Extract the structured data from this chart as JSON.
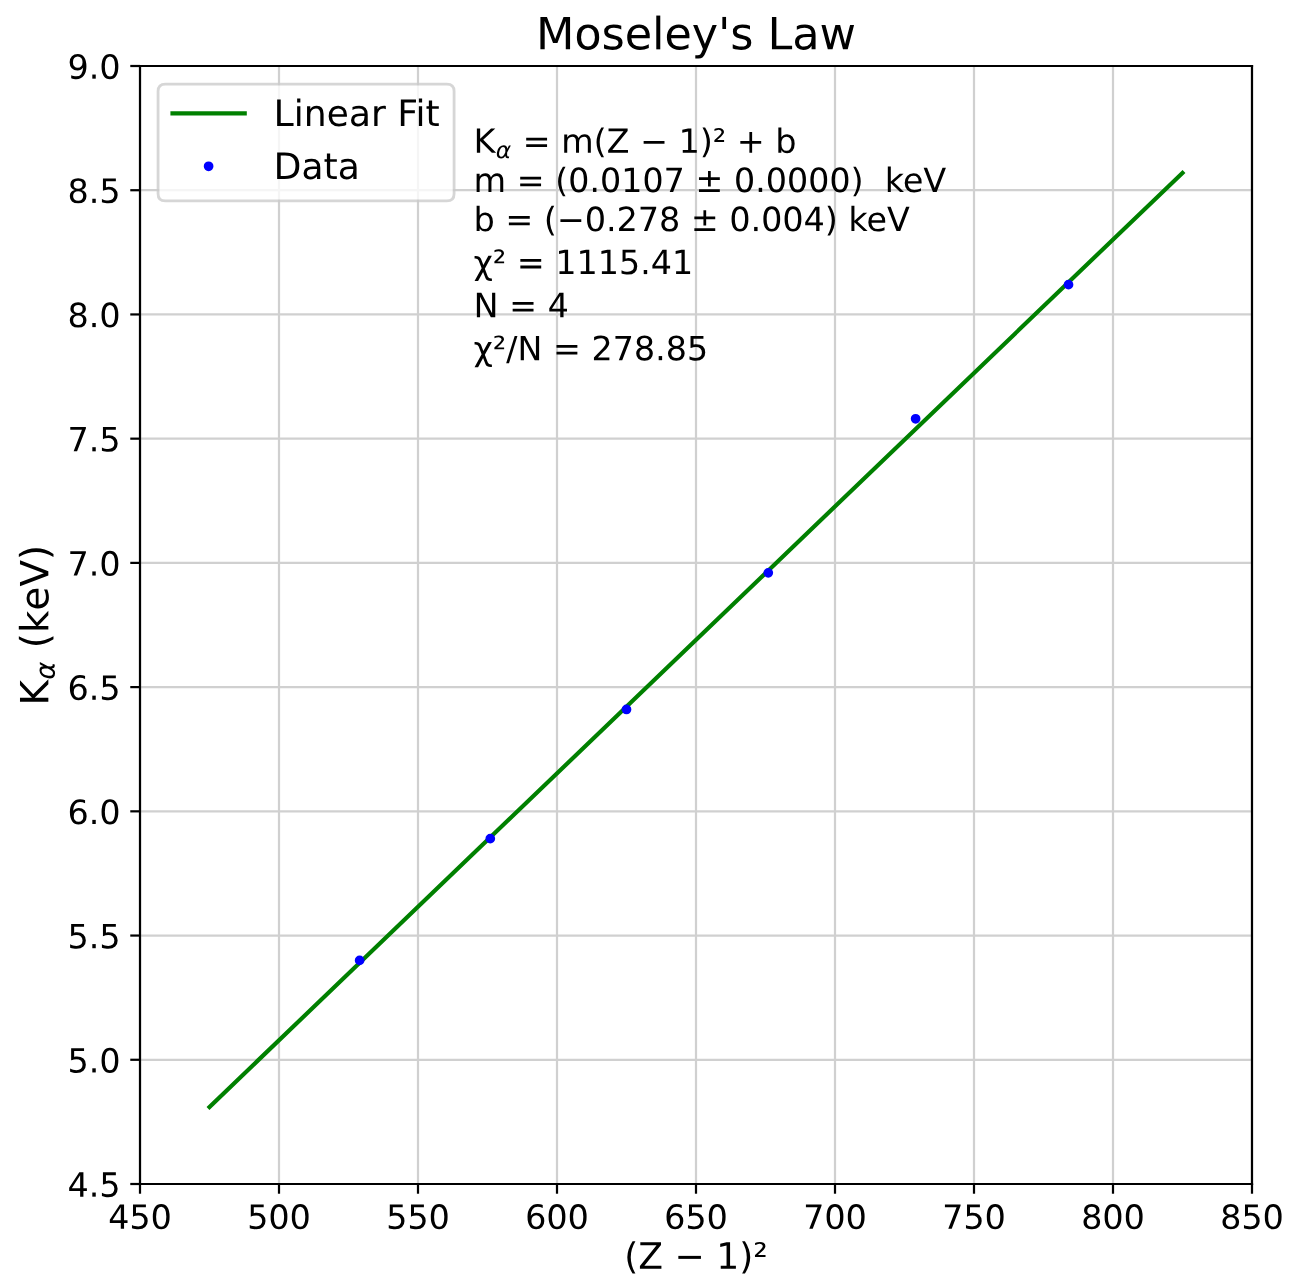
{
  "chart_data": {
    "type": "scatter",
    "title": "Moseley's Law",
    "xlabel": "(Z − 1)²",
    "ylabel": "K$_{α}$ (keV)",
    "series": [
      {
        "name": "Linear Fit",
        "type": "line",
        "color": "#008000",
        "x": [
          475,
          825
        ],
        "values": [
          4.81,
          8.57
        ]
      },
      {
        "name": "Data",
        "marker": "circle",
        "color": "#0000ff",
        "x": [
          529,
          576,
          625,
          676,
          729,
          784
        ],
        "values": [
          5.4,
          5.89,
          6.41,
          6.96,
          7.58,
          8.12
        ]
      }
    ],
    "annotations": [
      "K$_{α}$ = m(Z − 1)² + b",
      "m = (0.0107 ± 0.0000)  keV",
      "b = (−0.278 ± 0.004) keV",
      "χ² = 1115.41",
      "N = 4",
      "χ²/N = 278.85"
    ],
    "xlim": [
      450,
      850
    ],
    "xticks": [
      450,
      500,
      550,
      600,
      650,
      700,
      750,
      800,
      850
    ],
    "ylim": [
      4.5,
      9.0
    ],
    "yticks": [
      {
        "value": 4.5,
        "label": "4.5"
      },
      {
        "value": 5.0,
        "label": "5.0"
      },
      {
        "value": 5.5,
        "label": "5.5"
      },
      {
        "value": 6.0,
        "label": "6.0"
      },
      {
        "value": 6.5,
        "label": "6.5"
      },
      {
        "value": 7.0,
        "label": "7.0"
      },
      {
        "value": 7.5,
        "label": "7.5"
      },
      {
        "value": 8.0,
        "label": "8.0"
      },
      {
        "value": 8.5,
        "label": "8.5"
      },
      {
        "value": 9.0,
        "label": "9.0"
      }
    ],
    "grid": true,
    "legend": "top left"
  }
}
